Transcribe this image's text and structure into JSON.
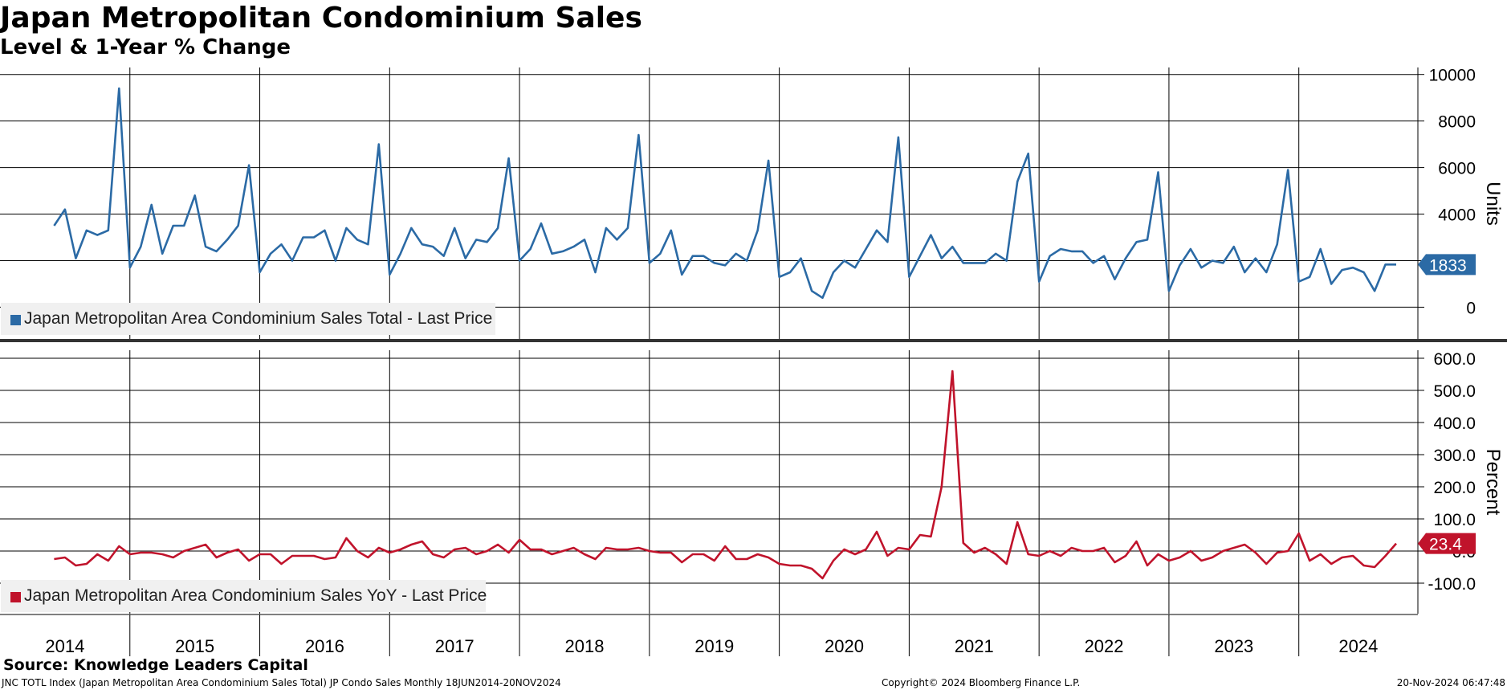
{
  "header": {
    "title": "Japan Metropolitan Condominium Sales",
    "subtitle": "Level & 1-Year % Change"
  },
  "footer": {
    "source": "Source: Knowledge Leaders Capital",
    "index_info": "JNC TOTL Index (Japan Metropolitan Area Condominium Sales Total) JP Condo Sales  Monthly 18JUN2014-20NOV2024",
    "copyright": "Copyright© 2024 Bloomberg Finance L.P.",
    "timestamp": "20-Nov-2024 06:47:48"
  },
  "colors": {
    "level": "#2b6aa5",
    "yoy": "#c0132b",
    "grid": "#000000",
    "legend_bg": "#f0f0f0"
  },
  "chart_data": [
    {
      "type": "line",
      "ylabel": "Units",
      "ylim": [
        -1400,
        10300
      ],
      "yticks": [
        0,
        2000,
        4000,
        6000,
        8000,
        10000
      ],
      "ytick_labels": [
        "0",
        "2000",
        "4000",
        "6000",
        "8000",
        "10000"
      ],
      "x_start": "2014-06",
      "x_end": "2024-10",
      "xlim": [
        "2014-01",
        "2024-12"
      ],
      "year_labels": [
        "2014",
        "2015",
        "2016",
        "2017",
        "2018",
        "2019",
        "2020",
        "2021",
        "2022",
        "2023",
        "2024"
      ],
      "legend": "Japan Metropolitan Area Condominium Sales Total - Last Price",
      "last_value_label": "1833",
      "series": [
        {
          "name": "Japan Metropolitan Area Condominium Sales Total - Last Price",
          "values": [
            3500,
            4200,
            2100,
            3300,
            3100,
            3300,
            9400,
            1700,
            2600,
            4400,
            2300,
            3500,
            3500,
            4800,
            2600,
            2400,
            2900,
            3500,
            6100,
            1500,
            2300,
            2700,
            2000,
            3000,
            3000,
            3300,
            2000,
            3400,
            2900,
            2700,
            7000,
            1400,
            2300,
            3400,
            2700,
            2600,
            2200,
            3400,
            2100,
            2900,
            2800,
            3400,
            6400,
            2000,
            2500,
            3600,
            2300,
            2400,
            2600,
            2900,
            1500,
            3400,
            2900,
            3400,
            7400,
            1900,
            2300,
            3300,
            1400,
            2200,
            2200,
            1900,
            1800,
            2300,
            2000,
            3300,
            6300,
            1300,
            1500,
            2100,
            700,
            400,
            1500,
            2000,
            1700,
            2500,
            3300,
            2800,
            7300,
            1300,
            2200,
            3100,
            2100,
            2600,
            1900,
            1900,
            1900,
            2300,
            2000,
            5400,
            6600,
            1100,
            2200,
            2500,
            2400,
            2400,
            1900,
            2200,
            1200,
            2100,
            2800,
            2900,
            5800,
            700,
            1800,
            2500,
            1700,
            2000,
            1900,
            2600,
            1500,
            2100,
            1500,
            2700,
            5900,
            1100,
            1300,
            2500,
            1000,
            1600,
            1700,
            1500,
            700,
            1833,
            1833
          ]
        }
      ]
    },
    {
      "type": "line",
      "ylabel": "Percent",
      "ylim": [
        -195,
        625
      ],
      "yticks": [
        -100,
        0,
        100,
        200,
        300,
        400,
        500,
        600
      ],
      "ytick_labels": [
        "-100.0",
        "0.0",
        "100.0",
        "200.0",
        "300.0",
        "400.0",
        "500.0",
        "600.0"
      ],
      "legend": "Japan Metropolitan Area Condominium Sales YoY - Last Price",
      "last_value_label": "23.4",
      "series": [
        {
          "name": "Japan Metropolitan Area Condominium Sales YoY - Last Price",
          "values": [
            -25,
            -20,
            -45,
            -40,
            -10,
            -30,
            15,
            -10,
            -5,
            -5,
            -10,
            -20,
            0,
            10,
            20,
            -20,
            -5,
            5,
            -30,
            -10,
            -10,
            -40,
            -15,
            -15,
            -15,
            -25,
            -20,
            40,
            0,
            -20,
            10,
            -5,
            5,
            20,
            30,
            -10,
            -20,
            5,
            10,
            -10,
            0,
            20,
            -5,
            35,
            5,
            5,
            -10,
            0,
            10,
            -10,
            -25,
            10,
            5,
            5,
            10,
            0,
            -5,
            -5,
            -35,
            -10,
            -10,
            -30,
            15,
            -25,
            -25,
            -10,
            -20,
            -40,
            -45,
            -45,
            -55,
            -85,
            -30,
            5,
            -10,
            5,
            60,
            -15,
            10,
            5,
            50,
            45,
            200,
            560,
            25,
            -5,
            10,
            -10,
            -40,
            90,
            -10,
            -15,
            0,
            -15,
            10,
            0,
            0,
            10,
            -35,
            -15,
            30,
            -45,
            -10,
            -30,
            -20,
            0,
            -30,
            -20,
            0,
            10,
            20,
            -5,
            -40,
            -5,
            0,
            55,
            -30,
            -10,
            -40,
            -20,
            -15,
            -45,
            -50,
            -15,
            23.4
          ]
        }
      ]
    }
  ]
}
